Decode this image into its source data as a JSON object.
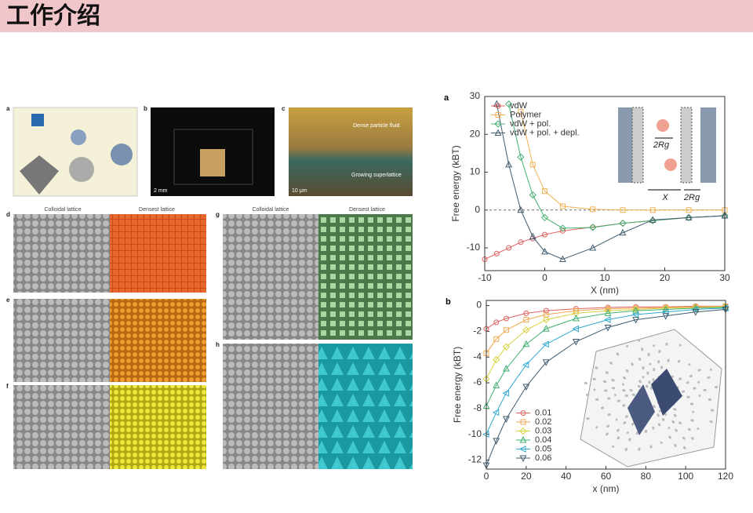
{
  "header": {
    "title": "工作介绍"
  },
  "figure": {
    "panel_labels": [
      "a",
      "b",
      "c",
      "d",
      "e",
      "f",
      "g",
      "h"
    ],
    "column_headers": [
      "Colloidal lattice",
      "Densest lattice",
      "Colloidal lattice",
      "Densest lattice"
    ],
    "scale_bars": [
      "2 mm",
      "10 μm"
    ],
    "annotations": [
      "Dense particle fluid",
      "Growing superlattice"
    ]
  },
  "chart_data": [
    {
      "type": "line",
      "panel_label": "a",
      "xlabel": "X (nm)",
      "ylabel": "Free energy (kBT)",
      "x": [
        -10,
        -8,
        -6,
        -4,
        -2,
        0,
        3,
        8,
        13,
        18,
        24,
        30
      ],
      "series": [
        {
          "name": "vdW",
          "color": "#e06060",
          "marker": "circle",
          "values": [
            -13,
            -11.5,
            -10,
            -8.5,
            -7.5,
            -6.5,
            -5.5,
            -4.5,
            -3.5,
            -2.8,
            -2,
            -1.5
          ]
        },
        {
          "name": "Polymer",
          "color": "#f0b050",
          "marker": "square",
          "values": [
            null,
            null,
            null,
            26,
            12,
            5,
            1,
            0.2,
            0,
            0,
            0,
            0
          ]
        },
        {
          "name": "vdW + pol.",
          "color": "#40b070",
          "marker": "diamond",
          "values": [
            null,
            null,
            28,
            14,
            4,
            -2,
            -4.8,
            -4.6,
            -3.5,
            -2.8,
            -2,
            -1.5
          ]
        },
        {
          "name": "vdW + pol. + depl.",
          "color": "#405c70",
          "marker": "triangle-up",
          "values": [
            null,
            28,
            12,
            0,
            -7,
            -11,
            -13,
            -10,
            -6,
            -2.6,
            -2,
            -1.5
          ]
        }
      ],
      "xlim": [
        -10,
        30
      ],
      "xticks": [
        -10,
        0,
        10,
        20,
        30
      ],
      "ylim": [
        -16,
        30
      ],
      "yticks": [
        -10,
        0,
        10,
        20,
        30
      ],
      "reference_line": 0,
      "legend": "upper left",
      "grid": false,
      "inset_labels": [
        "2Rg",
        "X",
        "2Rg"
      ]
    },
    {
      "type": "line",
      "panel_label": "b",
      "xlabel": "x (nm)",
      "ylabel": "Free energy (kBT)",
      "x": [
        0,
        5,
        10,
        20,
        30,
        45,
        61,
        75,
        90,
        105,
        120
      ],
      "series": [
        {
          "name": "0.01",
          "color": "#e06060",
          "marker": "circle",
          "values": [
            -1.8,
            -1.3,
            -1,
            -0.6,
            -0.4,
            -0.25,
            -0.15,
            -0.1,
            -0.1,
            -0.05,
            -0.05
          ]
        },
        {
          "name": "0.02",
          "color": "#f0a850",
          "marker": "square",
          "values": [
            -3.7,
            -2.6,
            -1.9,
            -1.1,
            -0.7,
            -0.4,
            -0.25,
            -0.2,
            -0.15,
            -0.1,
            -0.05
          ]
        },
        {
          "name": "0.03",
          "color": "#d8d040",
          "marker": "diamond",
          "values": [
            -5.7,
            -4.2,
            -3.2,
            -1.9,
            -1.1,
            -0.6,
            -0.4,
            -0.3,
            -0.2,
            -0.15,
            -0.1
          ]
        },
        {
          "name": "0.04",
          "color": "#40b070",
          "marker": "triangle-up",
          "values": [
            -7.8,
            -6.2,
            -4.9,
            -3,
            -1.8,
            -1,
            -0.6,
            -0.4,
            -0.3,
            -0.2,
            -0.15
          ]
        },
        {
          "name": "0.05",
          "color": "#30a8d0",
          "marker": "triangle-left",
          "values": [
            -10,
            -8.3,
            -6.8,
            -4.6,
            -3,
            -1.8,
            -1.1,
            -0.7,
            -0.5,
            -0.3,
            -0.2
          ]
        },
        {
          "name": "0.06",
          "color": "#405c70",
          "marker": "triangle-down",
          "values": [
            -12.4,
            -10.5,
            -8.8,
            -6.3,
            -4.4,
            -2.8,
            -1.7,
            -1.1,
            -0.8,
            -0.5,
            -0.3
          ]
        }
      ],
      "xlim": [
        0,
        120
      ],
      "xticks": [
        0,
        20,
        40,
        60,
        80,
        100,
        120
      ],
      "ylim": [
        -12.7,
        0.4
      ],
      "yticks": [
        0,
        -2,
        -4,
        -6,
        -8,
        -10,
        -12
      ],
      "legend": "lower left",
      "grid": false
    }
  ]
}
